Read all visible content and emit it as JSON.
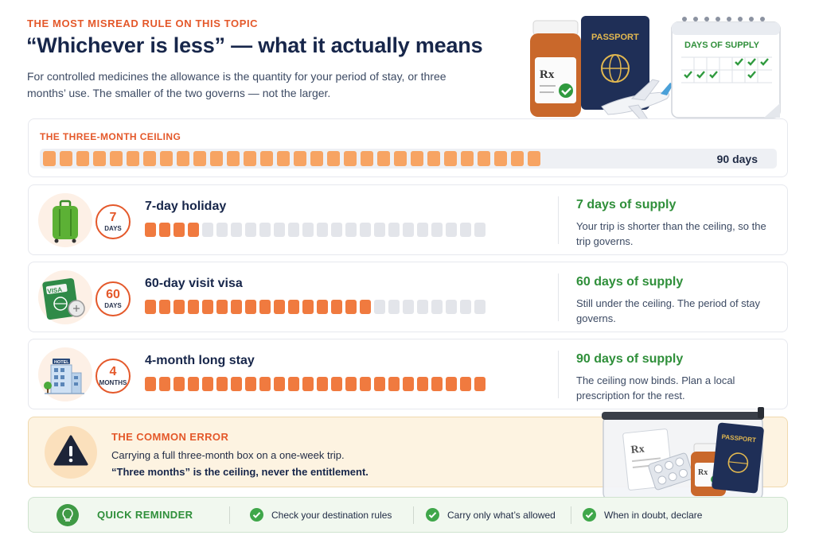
{
  "header": {
    "eyebrow": "THE MOST MISREAD RULE ON THIS TOPIC",
    "title": "“Whichever is less” — what it actually means",
    "intro": "For controlled medicines the allowance is the quantity for your period of stay, or three months’ use. The smaller of the two governs — not the larger."
  },
  "hero": {
    "passport_label": "PASSPORT",
    "calendar_label": "DAYS OF SUPPLY",
    "rx_label": "Rx"
  },
  "ceiling": {
    "label": "THE THREE-MONTH CEILING",
    "value": "90 days",
    "segments": 30
  },
  "scenarios": [
    {
      "icon": "suitcase-icon",
      "badge_num": "7",
      "badge_unit": "DAYS",
      "title": "7-day holiday",
      "filled": 4,
      "total": 24,
      "result": "7 days of supply",
      "explain": "Your trip is shorter than the ceiling, so the trip governs."
    },
    {
      "icon": "visa-icon",
      "icon_text": "VISA",
      "badge_num": "60",
      "badge_unit": "DAYS",
      "title": "60-day visit visa",
      "filled": 16,
      "total": 24,
      "result": "60 days of supply",
      "explain": "Still under the ceiling. The period of stay governs."
    },
    {
      "icon": "hotel-icon",
      "icon_text": "HOTEL",
      "badge_num": "4",
      "badge_unit": "MONTHS",
      "title": "4-month long stay",
      "filled": 24,
      "total": 24,
      "result": "90 days of supply",
      "explain": "The ceiling now binds. Plan a local prescription for the rest."
    }
  ],
  "error": {
    "label": "THE COMMON ERROR",
    "text": "Carrying a full three-month box on a one-week trip.",
    "bold": "“Three months” is the ceiling, never the entitlement.",
    "pouch_passport": "PASSPORT",
    "pouch_rx": "Rx"
  },
  "reminder": {
    "label": "QUICK REMINDER",
    "items": [
      "Check your destination rules",
      "Carry only what’s allowed",
      "When in doubt, declare"
    ]
  },
  "colors": {
    "accent": "#e4582a",
    "fill": "#f07a3f",
    "ceiling_fill": "#f7a463",
    "green": "#2f8f3a"
  }
}
